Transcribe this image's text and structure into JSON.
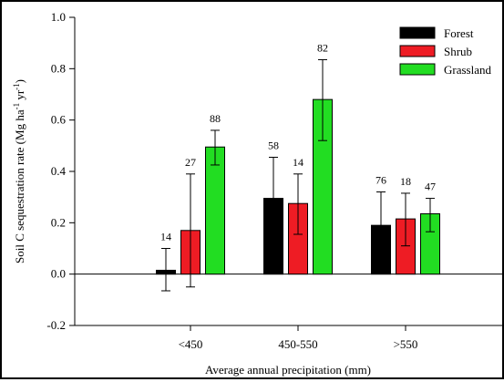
{
  "chart_data": {
    "type": "bar",
    "xlabel": "Average annual precipitation (mm)",
    "ylabel_parts": {
      "main": "Soil C sequestration rate (Mg ha",
      "sup1": "-1",
      "mid": " yr",
      "sup2": "-1",
      "end": ")"
    },
    "ylim": [
      -0.2,
      1.0
    ],
    "yticks": [
      "-0.2",
      "0.0",
      "0.2",
      "0.4",
      "0.6",
      "0.8",
      "1.0"
    ],
    "categories": [
      "<450",
      "450-550",
      ">550"
    ],
    "legend_position": "top-right",
    "series": [
      {
        "name": "Forest",
        "color": "#000000",
        "values": [
          0.015,
          0.295,
          0.19
        ],
        "err_low": [
          -0.065,
          0.155,
          0.06
        ],
        "err_high": [
          0.1,
          0.455,
          0.32
        ],
        "n": [
          "14",
          "58",
          "76"
        ]
      },
      {
        "name": "Shrub",
        "color": "#ee1c24",
        "values": [
          0.17,
          0.275,
          0.215
        ],
        "err_low": [
          -0.05,
          0.155,
          0.11
        ],
        "err_high": [
          0.39,
          0.39,
          0.315
        ],
        "n": [
          "27",
          "14",
          "18"
        ]
      },
      {
        "name": "Grassland",
        "color": "#22dd22",
        "values": [
          0.495,
          0.68,
          0.235
        ],
        "err_low": [
          0.425,
          0.52,
          0.165
        ],
        "err_high": [
          0.56,
          0.835,
          0.295
        ],
        "n": [
          "88",
          "82",
          "47"
        ]
      }
    ]
  }
}
